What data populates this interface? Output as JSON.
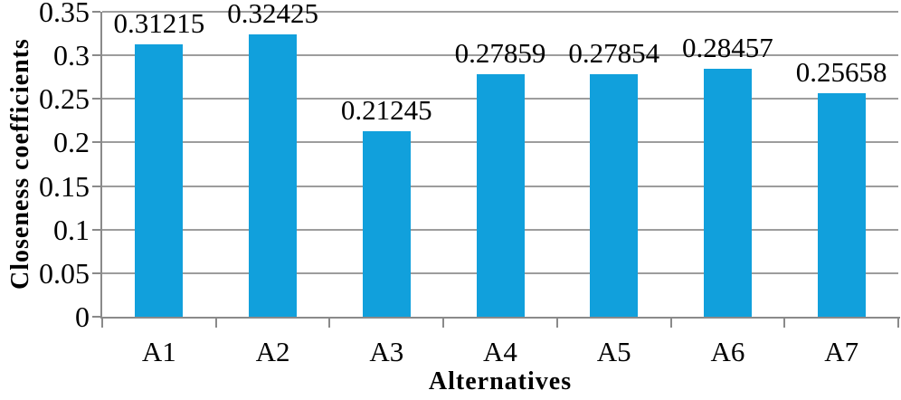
{
  "chart_data": {
    "type": "bar",
    "categories": [
      "A1",
      "A2",
      "A3",
      "A4",
      "A5",
      "A6",
      "A7"
    ],
    "values": [
      0.31215,
      0.32425,
      0.21245,
      0.27859,
      0.27854,
      0.28457,
      0.25658
    ],
    "value_labels": [
      "0.31215",
      "0.32425",
      "0.21245",
      "0.27859",
      "0.27854",
      "0.28457",
      "0.25658"
    ],
    "xlabel": "Alternatives",
    "ylabel": "Closeness coefficients",
    "ylim": [
      0,
      0.35
    ],
    "ytick_step": 0.05,
    "ytick_labels": [
      "0",
      "0.05",
      "0.1",
      "0.15",
      "0.2",
      "0.25",
      "0.3",
      "0.35"
    ],
    "grid": "on",
    "legend": "none",
    "colors": {
      "bar": "#11a0dc",
      "gridline": "#9d9d9d",
      "axis": "#8a8a8a",
      "text": "#000000"
    }
  }
}
